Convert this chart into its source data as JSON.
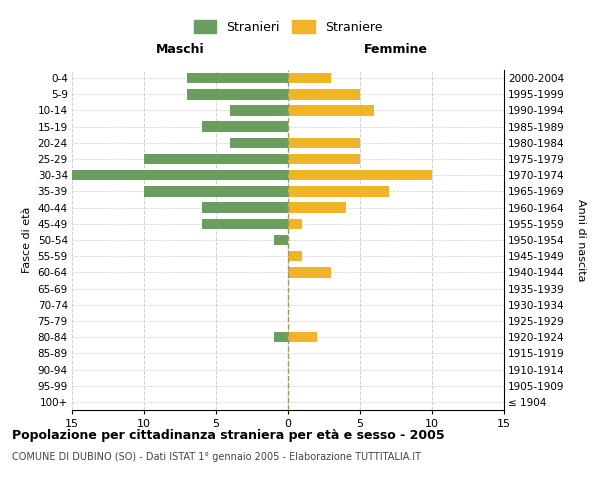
{
  "age_groups": [
    "100+",
    "95-99",
    "90-94",
    "85-89",
    "80-84",
    "75-79",
    "70-74",
    "65-69",
    "60-64",
    "55-59",
    "50-54",
    "45-49",
    "40-44",
    "35-39",
    "30-34",
    "25-29",
    "20-24",
    "15-19",
    "10-14",
    "5-9",
    "0-4"
  ],
  "birth_years": [
    "≤ 1904",
    "1905-1909",
    "1910-1914",
    "1915-1919",
    "1920-1924",
    "1925-1929",
    "1930-1934",
    "1935-1939",
    "1940-1944",
    "1945-1949",
    "1950-1954",
    "1955-1959",
    "1960-1964",
    "1965-1969",
    "1970-1974",
    "1975-1979",
    "1980-1984",
    "1985-1989",
    "1990-1994",
    "1995-1999",
    "2000-2004"
  ],
  "maschi": [
    0,
    0,
    0,
    0,
    1,
    0,
    0,
    0,
    0,
    0,
    1,
    6,
    6,
    10,
    15,
    10,
    4,
    6,
    4,
    7,
    7
  ],
  "femmine": [
    0,
    0,
    0,
    0,
    2,
    0,
    0,
    0,
    3,
    1,
    0,
    1,
    4,
    7,
    10,
    5,
    5,
    0,
    6,
    5,
    3
  ],
  "maschi_color": "#6a9e5e",
  "femmine_color": "#f0b429",
  "title": "Popolazione per cittadinanza straniera per età e sesso - 2005",
  "subtitle": "COMUNE DI DUBINO (SO) - Dati ISTAT 1° gennaio 2005 - Elaborazione TUTTITALIA.IT",
  "xlabel_left": "Maschi",
  "xlabel_right": "Femmine",
  "ylabel_left": "Fasce di età",
  "ylabel_right": "Anni di nascita",
  "legend_maschi": "Stranieri",
  "legend_femmine": "Straniere",
  "xlim": 15,
  "background_color": "#ffffff",
  "grid_color": "#d0d0d0",
  "centerline_color": "#999966"
}
